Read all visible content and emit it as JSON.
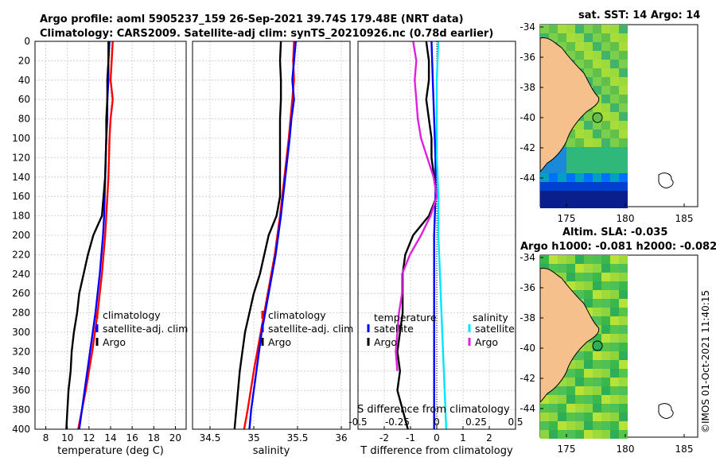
{
  "title_line1": "Argo profile: aoml 5905237_159 26-Sep-2021 39.74S 179.48E (NRT data)",
  "title_line2": "Climatology: CARS2009. Satellite-adj clim: synTS_20210926.nc (0.78d earlier)",
  "copyright": "©IMOS 01-Oct-2021 11:40:15",
  "colors": {
    "climatology": "#ff0000",
    "satellite": "#0000ff",
    "argo": "#000000",
    "sat_salinity": "#00e5ff",
    "argo_salinity": "#e020e0",
    "land": "#f5c08c"
  },
  "depth_ticks": [
    "0",
    "20",
    "40",
    "60",
    "80",
    "100",
    "120",
    "140",
    "160",
    "180",
    "200",
    "220",
    "240",
    "260",
    "280",
    "300",
    "320",
    "340",
    "360",
    "380",
    "400"
  ],
  "chart_data": [
    {
      "type": "line",
      "xlabel": "temperature (deg C)",
      "xlim": [
        7,
        21
      ],
      "ylim": [
        0,
        400
      ],
      "yaxis": "depth (inverted)",
      "xticks": [
        "8",
        "10",
        "12",
        "14",
        "16",
        "18",
        "20"
      ],
      "legend": [
        "climatology",
        "satellite-adj. clim",
        "Argo"
      ],
      "series": [
        {
          "name": "climatology",
          "depth": [
            0,
            20,
            40,
            60,
            80,
            100,
            140,
            180,
            200,
            240,
            280,
            320,
            360,
            400
          ],
          "values": [
            14.2,
            14.1,
            14.0,
            14.2,
            14.0,
            13.9,
            13.8,
            13.6,
            13.5,
            13.2,
            12.8,
            12.3,
            11.7,
            11.0
          ]
        },
        {
          "name": "satellite-adj. clim",
          "depth": [
            0,
            20,
            40,
            60,
            80,
            100,
            140,
            180,
            200,
            240,
            280,
            320,
            360,
            400
          ],
          "values": [
            13.9,
            13.8,
            13.8,
            13.7,
            13.7,
            13.6,
            13.5,
            13.4,
            13.3,
            13.0,
            12.6,
            12.1,
            11.6,
            11.1
          ]
        },
        {
          "name": "Argo",
          "depth": [
            0,
            20,
            40,
            60,
            80,
            100,
            140,
            180,
            200,
            220,
            240,
            260,
            280,
            300,
            320,
            340,
            360,
            380,
            400
          ],
          "values": [
            13.8,
            13.8,
            13.7,
            13.7,
            13.6,
            13.6,
            13.5,
            13.2,
            12.4,
            11.9,
            11.5,
            11.1,
            10.9,
            10.6,
            10.4,
            10.3,
            10.1,
            10.0,
            9.9
          ]
        }
      ]
    },
    {
      "type": "line",
      "xlabel": "salinity",
      "xlim": [
        34.3,
        36.1
      ],
      "ylim": [
        0,
        400
      ],
      "xticks": [
        "34.5",
        "35",
        "35.5",
        "36"
      ],
      "legend": [
        "climatology",
        "satellite-adj. clim",
        "Argo"
      ],
      "series": [
        {
          "name": "climatology",
          "depth": [
            0,
            20,
            40,
            60,
            80,
            100,
            140,
            180,
            220,
            260,
            300,
            340,
            380,
            400
          ],
          "values": [
            35.46,
            35.45,
            35.46,
            35.44,
            35.42,
            35.4,
            35.35,
            35.3,
            35.24,
            35.16,
            35.08,
            35.0,
            34.93,
            34.89
          ]
        },
        {
          "name": "satellite-adj. clim",
          "depth": [
            0,
            20,
            40,
            60,
            80,
            100,
            140,
            180,
            220,
            260,
            300,
            340,
            380,
            400
          ],
          "values": [
            35.48,
            35.46,
            35.44,
            35.46,
            35.43,
            35.41,
            35.36,
            35.31,
            35.25,
            35.17,
            35.09,
            35.03,
            34.97,
            34.95
          ]
        },
        {
          "name": "Argo",
          "depth": [
            0,
            20,
            40,
            60,
            80,
            100,
            140,
            160,
            180,
            200,
            220,
            240,
            260,
            280,
            300,
            320,
            340,
            360,
            380,
            400
          ],
          "values": [
            35.31,
            35.3,
            35.31,
            35.31,
            35.3,
            35.3,
            35.3,
            35.3,
            35.26,
            35.17,
            35.12,
            35.07,
            35.0,
            34.95,
            34.9,
            34.87,
            34.84,
            34.82,
            34.8,
            34.78
          ]
        }
      ]
    },
    {
      "type": "line",
      "xlabel": "T difference from climatology",
      "xlabel_top": "S difference from climatology",
      "xlim": [
        -3,
        3
      ],
      "ylim": [
        0,
        400
      ],
      "xticks": [
        "-2",
        "-1",
        "0",
        "1",
        "2"
      ],
      "xticks_top": [
        "-0.5",
        "-0.25",
        "0",
        "0.25",
        "0.5"
      ],
      "legend_temperature_title": "temperature",
      "legend_salinity_title": "salinity",
      "legend": [
        "satellite",
        "Argo",
        "satellite",
        "Argo"
      ],
      "series": [
        {
          "name": "temperature satellite",
          "depth": [
            0,
            40,
            80,
            120,
            160,
            200,
            240,
            300,
            360,
            400
          ],
          "values": [
            -0.2,
            -0.15,
            -0.1,
            -0.05,
            -0.05,
            -0.1,
            -0.1,
            -0.1,
            -0.1,
            -0.1
          ]
        },
        {
          "name": "temperature Argo",
          "depth": [
            0,
            20,
            40,
            60,
            80,
            100,
            120,
            140,
            160,
            180,
            200,
            220,
            240,
            260,
            280,
            300,
            320,
            340,
            360,
            380,
            400
          ],
          "values": [
            -0.4,
            -0.3,
            -0.3,
            -0.4,
            -0.3,
            -0.2,
            -0.2,
            -0.1,
            0.0,
            -0.3,
            -0.9,
            -1.2,
            -1.3,
            -1.3,
            -1.3,
            -1.4,
            -1.5,
            -1.4,
            -1.5,
            -1.3,
            -1.1
          ]
        },
        {
          "name": "salinity satellite",
          "depth": [
            0,
            40,
            80,
            120,
            160,
            200,
            240,
            280,
            320,
            360,
            400
          ],
          "values": [
            0.01,
            0.0,
            0.0,
            0.0,
            0.01,
            0.01,
            0.02,
            0.03,
            0.04,
            0.05,
            0.06
          ]
        },
        {
          "name": "salinity Argo",
          "depth": [
            0,
            20,
            40,
            60,
            80,
            100,
            120,
            140,
            160,
            180,
            200,
            220,
            240,
            260,
            280,
            300,
            320,
            340
          ],
          "values": [
            -0.15,
            -0.13,
            -0.14,
            -0.13,
            -0.12,
            -0.1,
            -0.06,
            -0.02,
            0.0,
            -0.04,
            -0.1,
            -0.17,
            -0.22,
            -0.22,
            -0.24,
            -0.25,
            -0.26,
            -0.25
          ]
        }
      ]
    }
  ],
  "maps": [
    {
      "title": "sat. SST: 14 Argo: 14",
      "xticks": [
        "175",
        "180",
        "185"
      ],
      "yticks": [
        "-34",
        "-36",
        "-38",
        "-40",
        "-42",
        "-44"
      ],
      "kind": "sst"
    },
    {
      "title": "Altim. SLA: -0.035",
      "subtitle": "Argo h1000: -0.081 h2000: -0.082",
      "xticks": [
        "175",
        "180",
        "185"
      ],
      "yticks": [
        "-34",
        "-36",
        "-38",
        "-40",
        "-42",
        "-44"
      ],
      "kind": "sla"
    }
  ]
}
